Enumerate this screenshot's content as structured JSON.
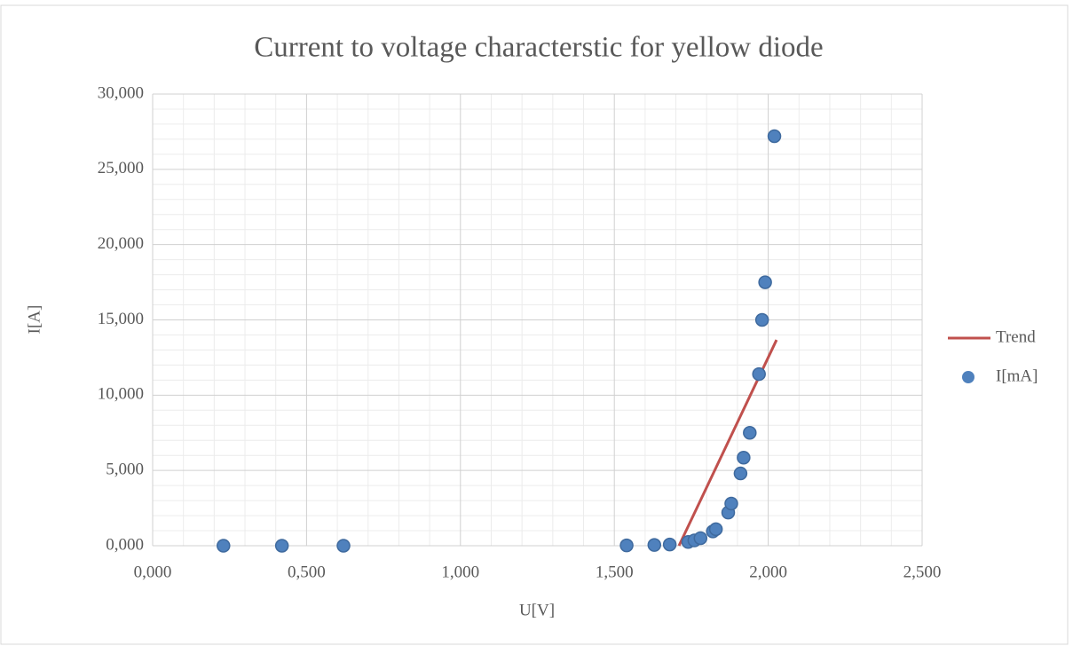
{
  "chart_data": {
    "type": "scatter",
    "title": "Current to voltage characterstic for yellow diode",
    "xlabel": "U[V]",
    "ylabel": "I[A]",
    "xlim": [
      0,
      2.5
    ],
    "xticks": [
      {
        "value": 0,
        "label": "0,000"
      },
      {
        "value": 0.5,
        "label": "0,500"
      },
      {
        "value": 1,
        "label": "1,000"
      },
      {
        "value": 1.5,
        "label": "1,500"
      },
      {
        "value": 2,
        "label": "2,000"
      },
      {
        "value": 2.5,
        "label": "2,500"
      }
    ],
    "ylim": [
      0,
      30
    ],
    "yticks": [
      {
        "value": 0,
        "label": "0,000"
      },
      {
        "value": 5,
        "label": "5,000"
      },
      {
        "value": 10,
        "label": "10,000"
      },
      {
        "value": 15,
        "label": "15,000"
      },
      {
        "value": 20,
        "label": "20,000"
      },
      {
        "value": 25,
        "label": "25,000"
      },
      {
        "value": 30,
        "label": "30,000"
      }
    ],
    "grid": true,
    "minor_grid": {
      "x": 5,
      "y": 5
    },
    "legend": "right",
    "series": [
      {
        "name": "Trend",
        "mode": "line",
        "color": "#c0504d",
        "x": [
          1.71,
          2.027
        ],
        "values": [
          0,
          13.67
        ]
      },
      {
        "name": "I[mA]",
        "mode": "markers",
        "color": "#4f81bd",
        "x": [
          0.23,
          0.42,
          0.62,
          1.54,
          1.63,
          1.68,
          1.74,
          1.76,
          1.78,
          1.82,
          1.83,
          1.87,
          1.88,
          1.91,
          1.92,
          1.94,
          1.97,
          1.98,
          1.99,
          2.02
        ],
        "values": [
          0,
          0,
          0,
          0.02,
          0.05,
          0.08,
          0.25,
          0.35,
          0.5,
          0.95,
          1.1,
          2.2,
          2.8,
          4.8,
          5.85,
          7.5,
          11.4,
          15.0,
          17.5,
          27.2
        ]
      }
    ]
  }
}
